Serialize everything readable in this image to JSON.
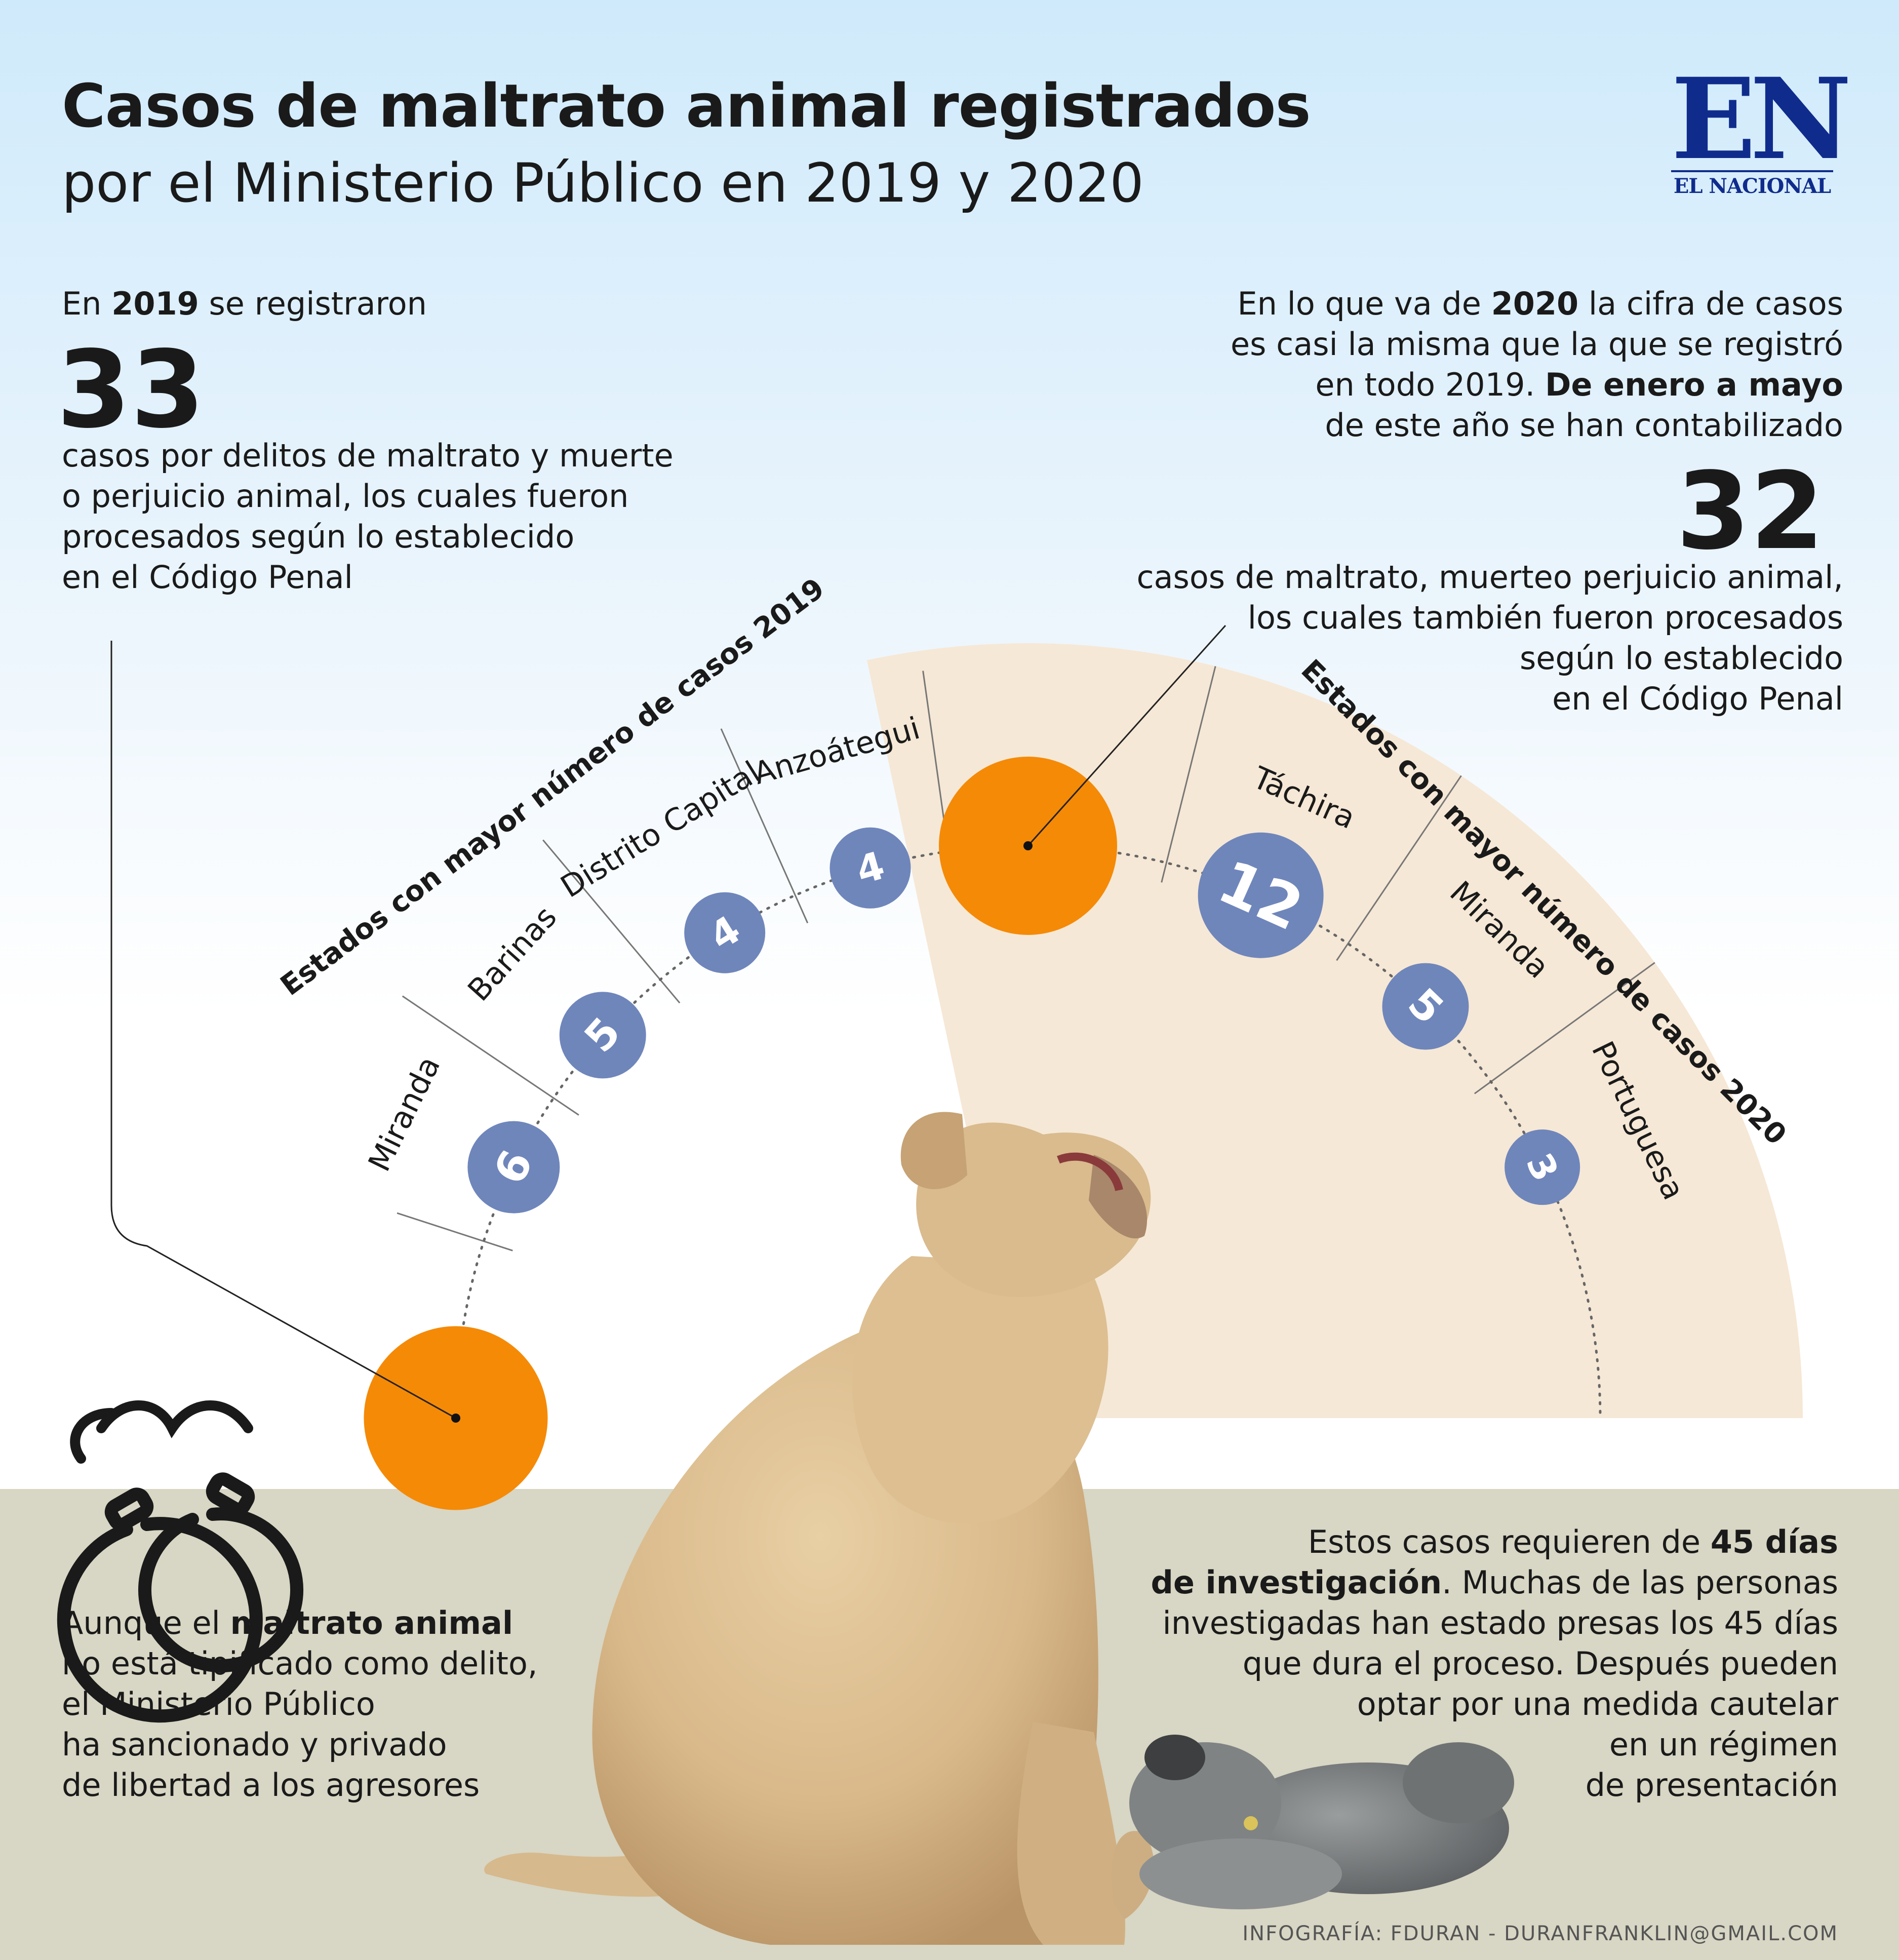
{
  "header": {
    "title_bold": "Casos de maltrato animal registrados",
    "title_regular": "por el Ministerio Público en 2019 y 2020"
  },
  "logo": {
    "mark": "EN",
    "name": "EL NACIONAL"
  },
  "intro_2019": {
    "pre": "En ",
    "year": "2019",
    "post": " se registraron",
    "number": "33",
    "lines": [
      "casos por delitos de maltrato y muerte",
      "o perjuicio animal, los cuales fueron",
      "procesados según lo establecido",
      "en el Código Penal"
    ]
  },
  "intro_2020": {
    "l1_pre": "En lo que va de ",
    "l1_year": "2020",
    "l1_post": " la cifra de casos",
    "l2": "es casi la misma que la que se registró",
    "l3_pre": "en todo 2019. ",
    "l3_bold": "De enero a mayo",
    "l4": "de este año se han contabilizado",
    "number": "32",
    "lines": [
      "casos de maltrato, muerteo perjuicio animal,",
      "los cuales también fueron procesados",
      "según lo establecido",
      "en el Código Penal"
    ]
  },
  "chart_data": [
    {
      "type": "bar",
      "title": "Estados con mayor número de casos 2019",
      "categories": [
        "Miranda",
        "Barinas",
        "Distrito Capital",
        "Anzoátegui"
      ],
      "values": [
        6,
        5,
        4,
        4
      ],
      "total": 33
    },
    {
      "type": "bar",
      "title": "Estados con mayor número de casos 2020",
      "categories": [
        "Táchira",
        "Miranda",
        "Portuguesa"
      ],
      "values": [
        12,
        5,
        3
      ],
      "total": 32
    }
  ],
  "colors": {
    "total_circle": "#f58a07",
    "state_circle": "#6f86bb",
    "sector_2020": "#f6e8d6",
    "band": "#d8d6c4",
    "logo": "#0f2c8c"
  },
  "bottom_left": {
    "pre": "Aunque el ",
    "bold": "maltrato animal",
    "lines": [
      "no está tipificado como delito,",
      "el Ministerio Público",
      "ha sancionado y privado",
      "de libertad a los agresores"
    ],
    "icon": "handcuffs-icon"
  },
  "bottom_right": {
    "l1_pre": "Estos casos requieren de ",
    "l1_bold": "45 días",
    "l2_bold": "de investigación",
    "l2_post": ". Muchas de las personas",
    "lines": [
      "investigadas han estado presas los 45 días",
      "que dura el proceso. Después pueden",
      "optar por una medida cautelar",
      "en un régimen",
      "de presentación"
    ]
  },
  "credit": "INFOGRAFÍA: FDURAN - DURANFRANKLIN@GMAIL.COM"
}
